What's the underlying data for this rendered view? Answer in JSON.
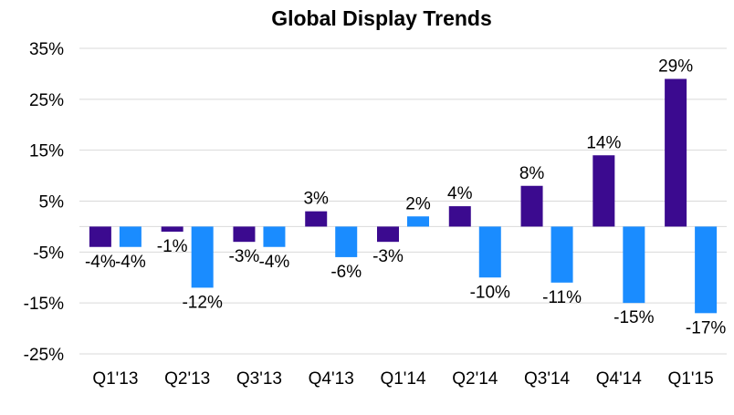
{
  "chart_data": {
    "type": "bar",
    "title": "Global Display Trends",
    "xlabel": "",
    "ylabel": "",
    "categories": [
      "Q1'13",
      "Q2'13",
      "Q3'13",
      "Q4'13",
      "Q1'14",
      "Q2'14",
      "Q3'14",
      "Q4'14",
      "Q1'15"
    ],
    "series": [
      {
        "color": "#3b0a8f",
        "values": [
          -4,
          -1,
          -3,
          3,
          -3,
          4,
          8,
          14,
          29
        ],
        "labels": [
          "-4%",
          "-1%",
          "-3%",
          "3%",
          "-3%",
          "4%",
          "8%",
          "14%",
          "29%"
        ]
      },
      {
        "color": "#1a8cff",
        "values": [
          -4,
          -12,
          -4,
          -6,
          2,
          -10,
          -11,
          -15,
          -17
        ],
        "labels": [
          "-4%",
          "-12%",
          "-4%",
          "-6%",
          "2%",
          "-10%",
          "-11%",
          "-15%",
          "-17%"
        ]
      }
    ],
    "yticks": [
      35,
      25,
      15,
      5,
      -5,
      -15,
      -25
    ],
    "ytick_labels": [
      "35%",
      "25%",
      "15%",
      "5%",
      "-5%",
      "-15%",
      "-25%"
    ],
    "ylim": [
      -25,
      35
    ],
    "grid": true,
    "legend": "none"
  }
}
